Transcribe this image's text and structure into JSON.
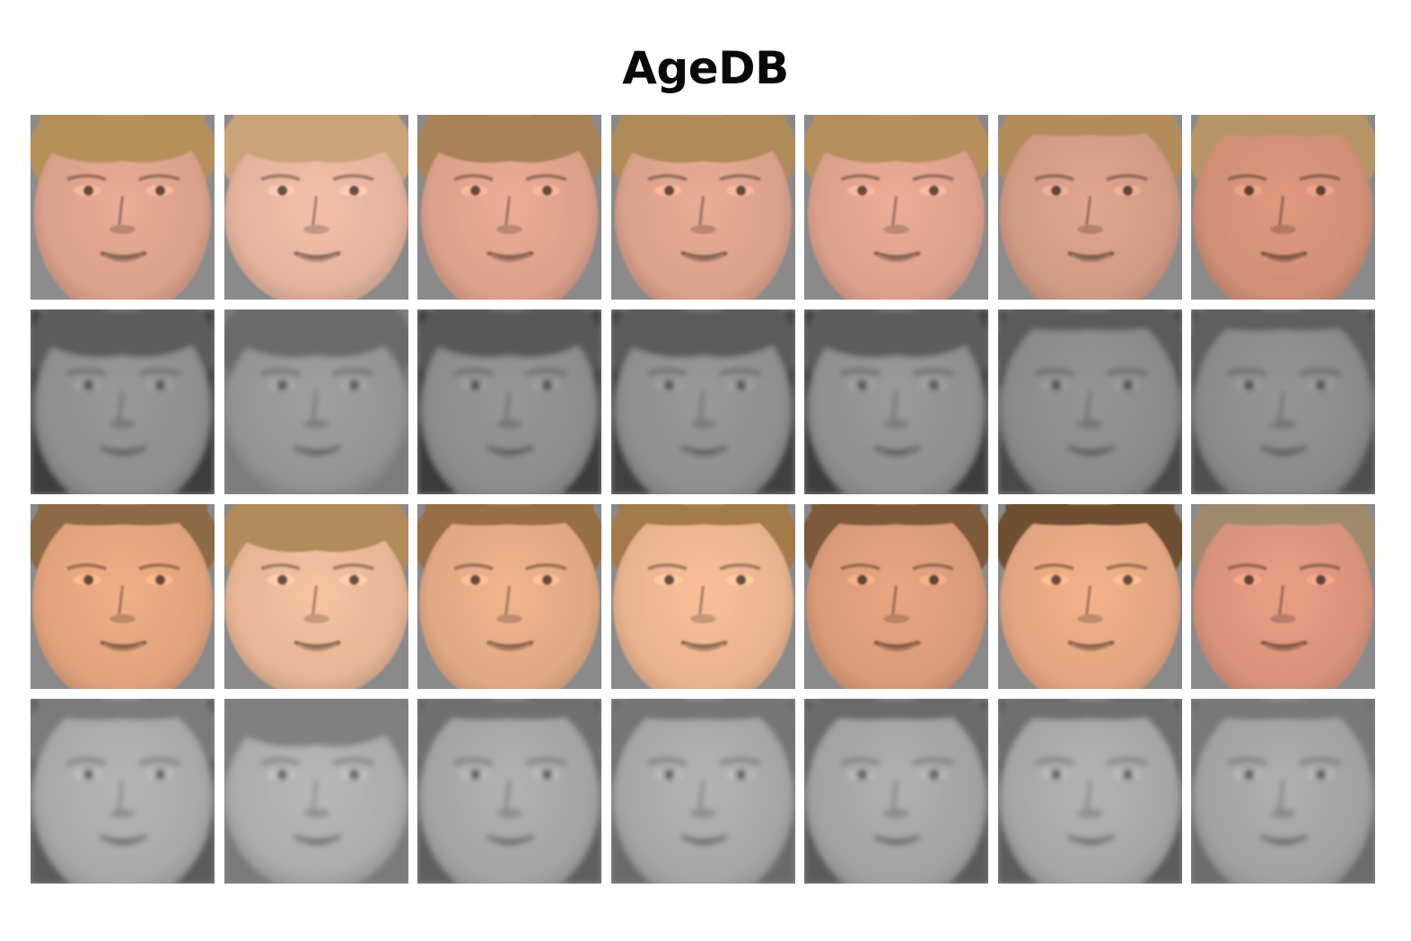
{
  "title": "AgeDB",
  "colors": {
    "background": "#ffffff",
    "tile_background": "#8a8a8a"
  },
  "rows": [
    {
      "kind": "color",
      "tiles": [
        {
          "skin": "#d9a08a",
          "hair": "#b5905a",
          "bg": "#8c8c8c",
          "shape": "narrow"
        },
        {
          "skin": "#e3b29d",
          "hair": "#c9a479",
          "bg": "#8a8a8a",
          "shape": "round"
        },
        {
          "skin": "#dba08a",
          "hair": "#a88358",
          "bg": "#8a8a8a",
          "shape": "narrow"
        },
        {
          "skin": "#d9a08a",
          "hair": "#b08b5a",
          "bg": "#8a8a8a",
          "shape": "narrow"
        },
        {
          "skin": "#dba08c",
          "hair": "#b68f5c",
          "bg": "#8a8a8a",
          "shape": "narrow"
        },
        {
          "skin": "#d09a84",
          "hair": "#b48c5c",
          "bg": "#8c8c8c",
          "shape": "wide"
        },
        {
          "skin": "#cf8f75",
          "hair": "#b89566",
          "bg": "#8a8a8a",
          "shape": "wide"
        }
      ]
    },
    {
      "kind": "gray",
      "tiles": [
        {
          "skin": "#8e8e8e",
          "hair": "#5c5c5c",
          "bg": "#3e3e3e",
          "shape": "narrow"
        },
        {
          "skin": "#949494",
          "hair": "#6a6a6a",
          "bg": "#7c7c7c",
          "shape": "round"
        },
        {
          "skin": "#8c8c8c",
          "hair": "#585858",
          "bg": "#3a3a3a",
          "shape": "narrow"
        },
        {
          "skin": "#8e8e8e",
          "hair": "#5a5a5a",
          "bg": "#404040",
          "shape": "narrow"
        },
        {
          "skin": "#8f8f8f",
          "hair": "#5c5c5c",
          "bg": "#3c3c3c",
          "shape": "narrow"
        },
        {
          "skin": "#8a8a8a",
          "hair": "#5a5a5a",
          "bg": "#4a4a4a",
          "shape": "wide"
        },
        {
          "skin": "#8a8a8a",
          "hair": "#5e5e5e",
          "bg": "#505050",
          "shape": "wide"
        }
      ]
    },
    {
      "kind": "color",
      "tiles": [
        {
          "skin": "#e0a27c",
          "hair": "#8c6a45",
          "bg": "#8a8a8a",
          "shape": "wide"
        },
        {
          "skin": "#e6b595",
          "hair": "#b38a5c",
          "bg": "#8a8a8a",
          "shape": "round"
        },
        {
          "skin": "#e0a883",
          "hair": "#9a6e45",
          "bg": "#8a8a8a",
          "shape": "wide"
        },
        {
          "skin": "#e8b28e",
          "hair": "#a57a4c",
          "bg": "#8a8a8a",
          "shape": "wide"
        },
        {
          "skin": "#d89a78",
          "hair": "#7d5a3a",
          "bg": "#8a8a8a",
          "shape": "wide"
        },
        {
          "skin": "#e2a580",
          "hair": "#6e4f33",
          "bg": "#8a8a8a",
          "shape": "wide"
        },
        {
          "skin": "#d8937a",
          "hair": "#a08a6e",
          "bg": "#8a8a8a",
          "shape": "wide"
        }
      ]
    },
    {
      "kind": "gray",
      "tiles": [
        {
          "skin": "#a8a8a8",
          "hair": "#7a7a7a",
          "bg": "#5a5a5a",
          "shape": "wide"
        },
        {
          "skin": "#ababab",
          "hair": "#808080",
          "bg": "#7a7a7a",
          "shape": "round"
        },
        {
          "skin": "#a4a4a4",
          "hair": "#707070",
          "bg": "#5e5e5e",
          "shape": "wide"
        },
        {
          "skin": "#a6a6a6",
          "hair": "#747474",
          "bg": "#6a6a6a",
          "shape": "wide"
        },
        {
          "skin": "#a3a3a3",
          "hair": "#6a6a6a",
          "bg": "#5a5a5a",
          "shape": "wide"
        },
        {
          "skin": "#a6a6a6",
          "hair": "#6e6e6e",
          "bg": "#5c5c5c",
          "shape": "wide"
        },
        {
          "skin": "#a2a2a2",
          "hair": "#787878",
          "bg": "#6c6c6c",
          "shape": "wide"
        }
      ]
    }
  ]
}
